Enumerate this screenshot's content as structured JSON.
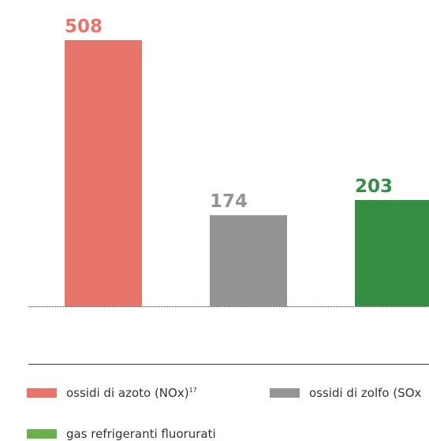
{
  "chart_data": {
    "type": "bar",
    "categories": [
      "ossidi di azoto (NOx)",
      "ossidi di zolfo (SOx",
      "gas refrigeranti fluorurati"
    ],
    "values": [
      508,
      174,
      203
    ],
    "value_labels": [
      "508",
      "174",
      "203"
    ],
    "colors": [
      "#e8756b",
      "#959493",
      "#358e44"
    ],
    "ylim": [
      0,
      508
    ],
    "legend": [
      {
        "label": "ossidi di azoto (NOx)",
        "footnote": "17",
        "color": "#e8756b"
      },
      {
        "label": "ossidi di zolfo (SOx",
        "footnote": "",
        "color": "#959493"
      },
      {
        "label": "gas refrigeranti fluorurati",
        "footnote": "",
        "color": "#6ab04c"
      }
    ],
    "legend_position": "bottom",
    "grid": false
  }
}
